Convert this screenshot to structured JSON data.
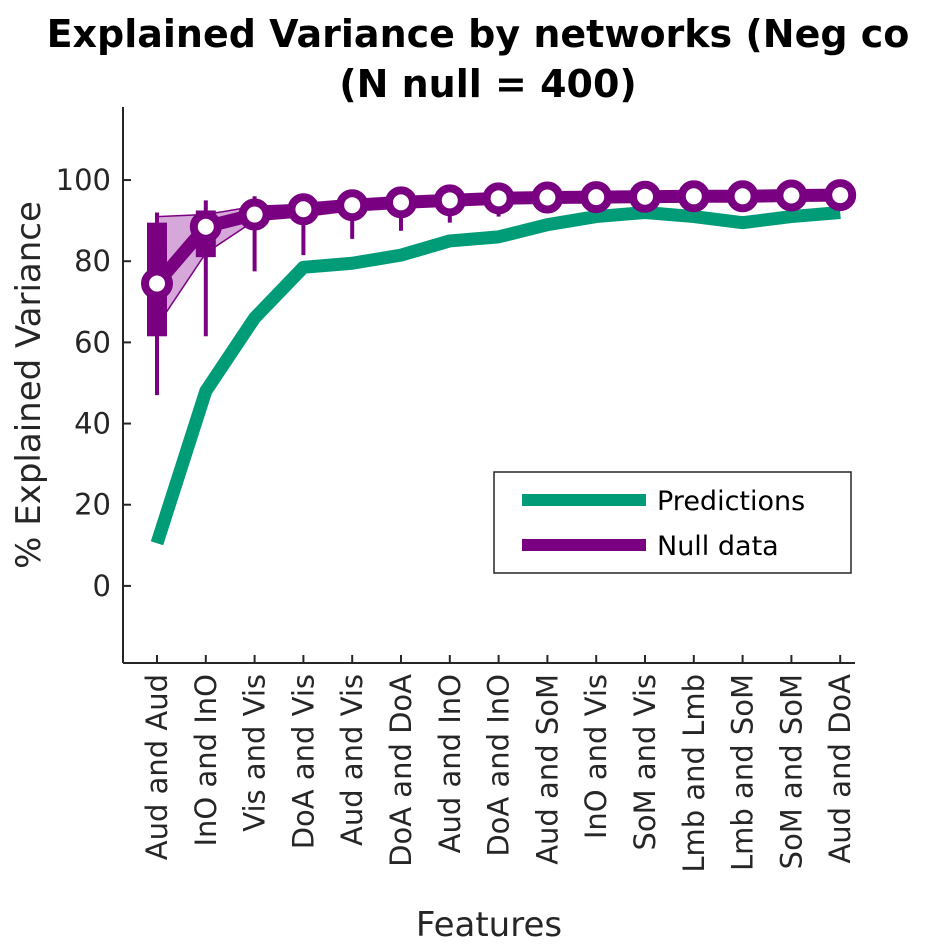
{
  "chart_data": {
    "type": "line",
    "title_line1": "Explained Variance by networks (Neg co",
    "title_line2": "(N null = 400)",
    "xlabel": "Features",
    "ylabel": "% Explained Variance",
    "ylim": [
      -19,
      118
    ],
    "yticks": [
      0,
      20,
      40,
      60,
      80,
      100
    ],
    "categories": [
      "Aud and Aud",
      "InO and InO",
      "Vis and Vis",
      "DoA and Vis",
      "Aud and Vis",
      "DoA and DoA",
      "Aud and InO",
      "DoA and InO",
      "Aud and SoM",
      "InO and Vis",
      "SoM and Vis",
      "Lmb and Lmb",
      "Lmb and SoM",
      "SoM and SoM",
      "Aud and DoA"
    ],
    "series": [
      {
        "name": "Predictions",
        "color": "#009B77",
        "values": [
          10.5,
          48,
          66,
          78.5,
          79.5,
          81.5,
          85,
          86,
          89,
          91,
          92,
          91,
          89.5,
          91,
          92
        ]
      },
      {
        "name": "Null data",
        "color": "#7A0082",
        "values": [
          74.5,
          88.5,
          91.5,
          92.8,
          93.8,
          94.5,
          95,
          95.5,
          95.7,
          95.8,
          95.9,
          96,
          96,
          96.2,
          96.3
        ],
        "q1": [
          61.5,
          81,
          88.5,
          90.5,
          92,
          93,
          94,
          94.5,
          95,
          95.2,
          95.4,
          95.5,
          95.5,
          95.8,
          95.9
        ],
        "q3": [
          89.5,
          92.5,
          94,
          94.5,
          95.5,
          96,
          96.3,
          96.5,
          96.6,
          96.7,
          96.8,
          96.8,
          96.9,
          97,
          97
        ],
        "whisker_low": [
          47,
          61.5,
          77.5,
          81.5,
          85.5,
          87.5,
          89.5,
          91,
          92,
          92.5,
          93,
          93.5,
          93.5,
          94,
          94.5
        ],
        "whisker_high": [
          92,
          95,
          96,
          96.5,
          97,
          97.5,
          97.5,
          97.8,
          98,
          98,
          98,
          98.2,
          98.2,
          98.3,
          98.4
        ],
        "band_low": [
          64,
          82,
          90,
          91,
          92.5,
          93.5,
          94.2,
          94.8,
          95.1,
          95.3,
          95.5,
          95.6,
          95.7,
          95.9,
          96
        ],
        "band_high": [
          91,
          91.5,
          93.5,
          94,
          95,
          95.5,
          96,
          96.3,
          96.5,
          96.6,
          96.7,
          96.8,
          96.8,
          97,
          97.1
        ]
      }
    ],
    "legend": {
      "placement": "right-center",
      "items": [
        "Predictions",
        "Null data"
      ]
    }
  }
}
